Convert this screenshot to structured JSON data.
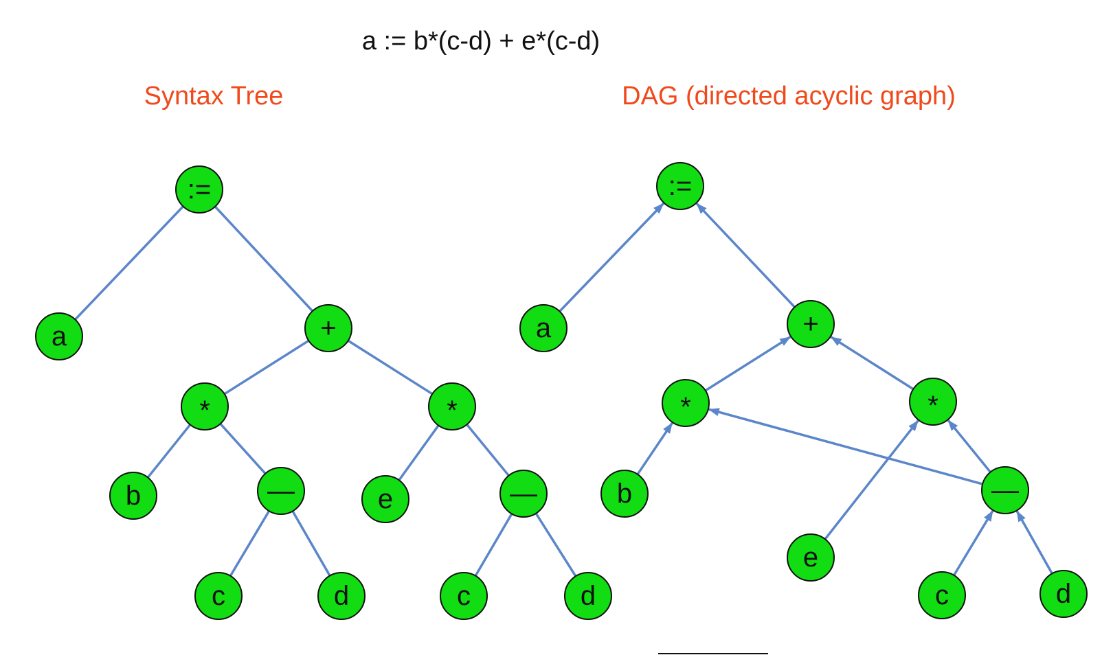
{
  "expression": "a := b*(c-d) + e*(c-d)",
  "colors": {
    "node_fill": "#12dc12",
    "edge": "#5b86c9",
    "heading": "#f04a1c",
    "text": "#111111"
  },
  "syntax_tree": {
    "heading": "Syntax Tree",
    "nodes": [
      {
        "id": "assign",
        "label": ":="
      },
      {
        "id": "a",
        "label": "a"
      },
      {
        "id": "plus",
        "label": "+"
      },
      {
        "id": "mul1",
        "label": "*"
      },
      {
        "id": "mul2",
        "label": "*"
      },
      {
        "id": "b",
        "label": "b"
      },
      {
        "id": "sub1",
        "label": "—"
      },
      {
        "id": "e",
        "label": "e"
      },
      {
        "id": "sub2",
        "label": "—"
      },
      {
        "id": "c1",
        "label": "c"
      },
      {
        "id": "d1",
        "label": "d"
      },
      {
        "id": "c2",
        "label": "c"
      },
      {
        "id": "d2",
        "label": "d"
      }
    ],
    "edges": [
      {
        "from": "assign",
        "to": "a"
      },
      {
        "from": "assign",
        "to": "plus"
      },
      {
        "from": "plus",
        "to": "mul1"
      },
      {
        "from": "plus",
        "to": "mul2"
      },
      {
        "from": "mul1",
        "to": "b"
      },
      {
        "from": "mul1",
        "to": "sub1"
      },
      {
        "from": "mul2",
        "to": "e"
      },
      {
        "from": "mul2",
        "to": "sub2"
      },
      {
        "from": "sub1",
        "to": "c1"
      },
      {
        "from": "sub1",
        "to": "d1"
      },
      {
        "from": "sub2",
        "to": "c2"
      },
      {
        "from": "sub2",
        "to": "d2"
      }
    ]
  },
  "dag": {
    "heading": "DAG (directed acyclic graph)",
    "nodes": [
      {
        "id": "assign",
        "label": ":="
      },
      {
        "id": "a",
        "label": "a"
      },
      {
        "id": "plus",
        "label": "+"
      },
      {
        "id": "mul1",
        "label": "*"
      },
      {
        "id": "mul2",
        "label": "*"
      },
      {
        "id": "b",
        "label": "b"
      },
      {
        "id": "sub",
        "label": "—"
      },
      {
        "id": "e",
        "label": "e"
      },
      {
        "id": "c",
        "label": "c"
      },
      {
        "id": "d",
        "label": "d"
      }
    ],
    "edges": [
      {
        "from": "a",
        "to": "assign"
      },
      {
        "from": "plus",
        "to": "assign"
      },
      {
        "from": "mul1",
        "to": "plus"
      },
      {
        "from": "mul2",
        "to": "plus"
      },
      {
        "from": "b",
        "to": "mul1"
      },
      {
        "from": "sub",
        "to": "mul1"
      },
      {
        "from": "e",
        "to": "mul2"
      },
      {
        "from": "sub",
        "to": "mul2"
      },
      {
        "from": "c",
        "to": "sub"
      },
      {
        "from": "d",
        "to": "sub"
      }
    ]
  }
}
